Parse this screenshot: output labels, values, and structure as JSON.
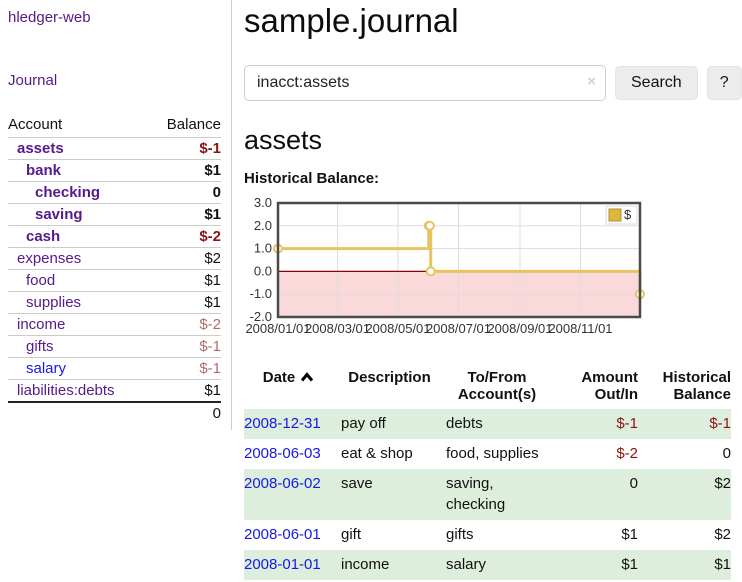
{
  "colors": {
    "purple_link": "#551a8b",
    "blue_link": "#1717e6",
    "negative_strong": "#8b1313",
    "negative_soft": "#b56b6b",
    "row_stripe_green": "#ddeedd",
    "chart_line_gold": "#e7c45f",
    "chart_negative_fill": "#f9d9d9",
    "chart_zero_line": "#8b0000",
    "chart_border": "#4a4a4a",
    "chart_grid": "#dddddd",
    "legend_swatch": "#dfb53f"
  },
  "app": {
    "brand": "hledger-web"
  },
  "sidebar": {
    "nav_journal": "Journal",
    "accounts_table": {
      "headers": {
        "account": "Account",
        "balance": "Balance"
      },
      "rows": [
        {
          "account": "assets",
          "depth": 1,
          "bold": true,
          "balance": "$-1"
        },
        {
          "account": "bank",
          "depth": 2,
          "bold": true,
          "balance": "$1"
        },
        {
          "account": "checking",
          "depth": 3,
          "bold": true,
          "balance": "0"
        },
        {
          "account": "saving",
          "depth": 3,
          "bold": true,
          "balance": "$1"
        },
        {
          "account": "cash",
          "depth": 2,
          "bold": true,
          "balance": "$-2"
        },
        {
          "account": "expenses",
          "depth": 1,
          "bold": false,
          "balance": "$2"
        },
        {
          "account": "food",
          "depth": 2,
          "bold": false,
          "balance": "$1"
        },
        {
          "account": "supplies",
          "depth": 2,
          "bold": false,
          "balance": "$1"
        },
        {
          "account": "income",
          "depth": 1,
          "bold": false,
          "balance": "$-2"
        },
        {
          "account": "gifts",
          "depth": 2,
          "bold": false,
          "balance": "$-1"
        },
        {
          "account": "salary",
          "depth": 2,
          "bold": false,
          "balance": "$-1",
          "link": "blue"
        },
        {
          "account": "liabilities:debts",
          "depth": 1,
          "bold": false,
          "balance": "$1"
        }
      ],
      "total": "0"
    }
  },
  "main": {
    "title": "sample.journal",
    "search": {
      "value": "inacct:assets",
      "clear_icon": "×",
      "button_label": "Search",
      "help_label": "?"
    },
    "account_heading": "assets",
    "section_label": "Historical Balance:"
  },
  "chart_data": {
    "type": "line",
    "step": true,
    "title": "Historical Balance:",
    "legend": [
      {
        "label": "$"
      }
    ],
    "legend_position": "top-right",
    "x_range": [
      "2008-01-01",
      "2008-12-31"
    ],
    "ylim": [
      -2,
      3
    ],
    "y_ticks": [
      "3.0",
      "2.0",
      "1.0",
      "0.0",
      "-1.0",
      "-2.0"
    ],
    "x_ticks": [
      "2008/01/01",
      "2008/03/01",
      "2008/05/01",
      "2008/07/01",
      "2008/09/01",
      "2008/11/01"
    ],
    "series": [
      {
        "name": "$",
        "points": [
          [
            "2008-01-01",
            1
          ],
          [
            "2008-06-01",
            2
          ],
          [
            "2008-06-02",
            2
          ],
          [
            "2008-06-03",
            0
          ],
          [
            "2008-12-31",
            -1
          ]
        ]
      }
    ],
    "negative_region_shaded": true,
    "grid": true
  },
  "register": {
    "headers": [
      {
        "label": "Date",
        "sort": "asc",
        "align": "left"
      },
      {
        "label": "Description",
        "align": "left"
      },
      {
        "label": "To/From Account(s)",
        "align": "left"
      },
      {
        "label": "Amount Out/In",
        "align": "right"
      },
      {
        "label": "Historical Balance",
        "align": "right"
      }
    ],
    "rows": [
      {
        "date": "2008-12-31",
        "description": "pay off",
        "accounts": "debts",
        "amount": "$-1",
        "balance": "$-1"
      },
      {
        "date": "2008-06-03",
        "description": "eat & shop",
        "accounts": "food, supplies",
        "amount": "$-2",
        "balance": "0"
      },
      {
        "date": "2008-06-02",
        "description": "save",
        "accounts": "saving, checking",
        "amount": "0",
        "balance": "$2"
      },
      {
        "date": "2008-06-01",
        "description": "gift",
        "accounts": "gifts",
        "amount": "$1",
        "balance": "$2"
      },
      {
        "date": "2008-01-01",
        "description": "income",
        "accounts": "salary",
        "amount": "$1",
        "balance": "$1"
      }
    ]
  }
}
